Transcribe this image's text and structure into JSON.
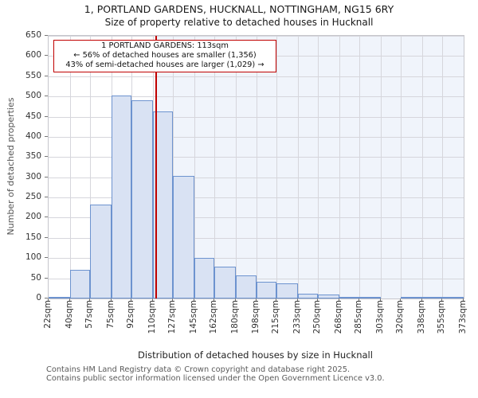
{
  "header": {
    "title": "1, PORTLAND GARDENS, HUCKNALL, NOTTINGHAM, NG15 6RY",
    "subtitle": "Size of property relative to detached houses in Hucknall"
  },
  "annotation": {
    "line1": "1 PORTLAND GARDENS: 113sqm",
    "line2": "← 56% of detached houses are smaller (1,356)",
    "line3": "43% of semi-detached houses are larger (1,029) →"
  },
  "chart_data": {
    "type": "bar",
    "title": "1, PORTLAND GARDENS, HUCKNALL, NOTTINGHAM, NG15 6RY",
    "subtitle": "Size of property relative to detached houses in Hucknall",
    "xlabel": "Distribution of detached houses by size in Hucknall",
    "ylabel": "Number of detached properties",
    "bin_edges_sqm": [
      22,
      40,
      57,
      75,
      92,
      110,
      127,
      145,
      162,
      180,
      198,
      215,
      233,
      250,
      268,
      285,
      303,
      320,
      338,
      355,
      373
    ],
    "categories": [
      "22sqm",
      "40sqm",
      "57sqm",
      "75sqm",
      "92sqm",
      "110sqm",
      "127sqm",
      "145sqm",
      "162sqm",
      "180sqm",
      "198sqm",
      "215sqm",
      "233sqm",
      "250sqm",
      "268sqm",
      "285sqm",
      "303sqm",
      "320sqm",
      "338sqm",
      "355sqm",
      "373sqm"
    ],
    "values": [
      4,
      70,
      232,
      503,
      490,
      462,
      303,
      100,
      78,
      57,
      41,
      38,
      12,
      10,
      2,
      2,
      0,
      1,
      1,
      3
    ],
    "ylim": [
      0,
      650
    ],
    "ytick_step": 50,
    "grid": true,
    "legend": "none",
    "marker_sqm": 113,
    "colors": {
      "bar_fill": "#d9e2f3",
      "bar_border": "#6d93cf",
      "marker_red": "#c00000",
      "shade_bg": "#f0f4fb",
      "gridline": "#d6d6dc",
      "frame": "#c6c6cc"
    }
  },
  "footer": {
    "line1": "Contains HM Land Registry data © Crown copyright and database right 2025.",
    "line2": "Contains public sector information licensed under the Open Government Licence v3.0."
  }
}
